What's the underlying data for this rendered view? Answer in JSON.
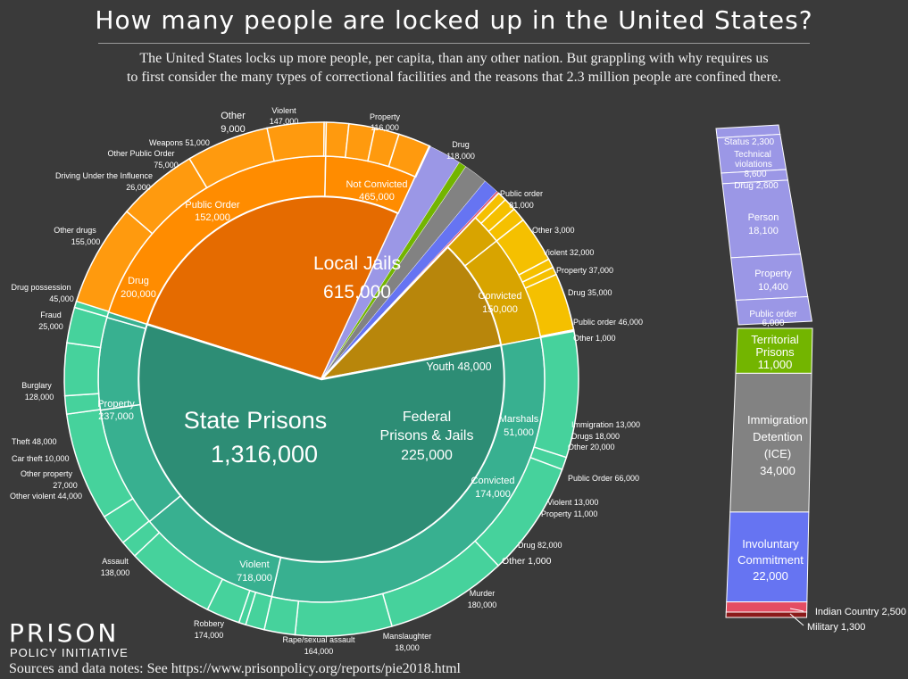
{
  "header": {
    "title": "How many people are locked up in the United States?",
    "subtitle_line1": "The United States locks up more people, per capita, than any other nation.  But grappling with why requires us",
    "subtitle_line2": "to first consider the many types of correctional facilities and the reasons that 2.3 million people are confined there."
  },
  "footer": {
    "logo_line1": "PRISON",
    "logo_line2": "POLICY INITIATIVE",
    "sources": "Sources and data notes: See https://www.prisonpolicy.org/reports/pie2018.html"
  },
  "chart_data": {
    "type": "pie",
    "title": "How many people are locked up in the United States?",
    "colors": {
      "background": "#3a3a3a",
      "state_center": "#2d8d75",
      "state_middle": "#38b090",
      "state_outer": "#46d29c",
      "jail_center": "#e56b00",
      "jail_middle": "#ff8c00",
      "jail_outer": "#ff9a0e",
      "federal_center": "#b8860b",
      "federal_middle": "#d8a400",
      "federal_outer": "#f5c000",
      "youth": "#9b97e6",
      "territorial": "#73b500",
      "immigration": "#828282",
      "involuntary": "#6674f2",
      "indian_country": "#e44d63",
      "military": "#8b1a1a"
    },
    "center": [
      {
        "name": "State Prisons",
        "value": "1,316,000",
        "value_num": 1316000
      },
      {
        "name": "Local Jails",
        "value": "615,000",
        "value_num": 615000
      },
      {
        "name": "Federal Prisons & Jails",
        "value": "225,000",
        "value_num": 225000
      },
      {
        "name": "Youth",
        "value": "48,000",
        "value_num": 48000
      },
      {
        "name": "Territorial Prisons",
        "value": "11,000",
        "value_num": 11000
      },
      {
        "name": "Immigration Detention (ICE)",
        "value": "34,000",
        "value_num": 34000
      },
      {
        "name": "Involuntary Commitment",
        "value": "22,000",
        "value_num": 22000
      },
      {
        "name": "Indian Country",
        "value": "2,500",
        "value_num": 2500
      },
      {
        "name": "Military",
        "value": "1,300",
        "value_num": 1300
      }
    ],
    "state_prisons": {
      "middle": [
        {
          "name": "Violent",
          "value": "718,000",
          "value_num": 718000
        },
        {
          "name": "Property",
          "value": "237,000",
          "value_num": 237000
        },
        {
          "name": "Drug",
          "value": "200,000",
          "value_num": 200000
        },
        {
          "name": "Public Order",
          "value": "152,000",
          "value_num": 152000
        },
        {
          "name": "Other",
          "value": "9,000",
          "value_num": 9000
        }
      ],
      "outer": [
        {
          "name": "Murder",
          "value": "180,000",
          "value_num": 180000
        },
        {
          "name": "Manslaughter",
          "value": "18,000",
          "value_num": 18000
        },
        {
          "name": "Rape/sexual assault",
          "value": "164,000",
          "value_num": 164000
        },
        {
          "name": "Robbery",
          "value": "174,000",
          "value_num": 174000
        },
        {
          "name": "Assault",
          "value": "138,000",
          "value_num": 138000
        },
        {
          "name": "Other violent",
          "value": "44,000",
          "value_num": 44000
        },
        {
          "name": "Other property",
          "value": "27,000",
          "value_num": 27000
        },
        {
          "name": "Car theft",
          "value": "10,000",
          "value_num": 10000
        },
        {
          "name": "Theft",
          "value": "48,000",
          "value_num": 48000
        },
        {
          "name": "Burglary",
          "value": "128,000",
          "value_num": 128000
        },
        {
          "name": "Fraud",
          "value": "25,000",
          "value_num": 25000
        },
        {
          "name": "Drug possession",
          "value": "45,000",
          "value_num": 45000
        },
        {
          "name": "Other drugs",
          "value": "155,000",
          "value_num": 155000
        },
        {
          "name": "Driving Under the Influence",
          "value": "26,000",
          "value_num": 26000
        },
        {
          "name": "Other Public Order",
          "value": "75,000",
          "value_num": 75000
        },
        {
          "name": "Weapons",
          "value": "51,000",
          "value_num": 51000
        },
        {
          "name": "Other",
          "value": "9,000",
          "value_num": 9000
        }
      ]
    },
    "local_jails": {
      "middle": [
        {
          "name": "Not Convicted",
          "value": "465,000",
          "value_num": 465000
        },
        {
          "name": "Convicted",
          "value": "150,000",
          "value_num": 150000
        }
      ],
      "outer": [
        {
          "name": "Violent",
          "value": "147,000",
          "value_num": 147000
        },
        {
          "name": "Property",
          "value": "116,000",
          "value_num": 116000
        },
        {
          "name": "Drug",
          "value": "118,000",
          "value_num": 118000
        },
        {
          "name": "Public order",
          "value": "81,000",
          "value_num": 81000
        },
        {
          "name": "Other",
          "value": "3,000",
          "value_num": 3000
        },
        {
          "name": "Violent",
          "value": "32,000",
          "value_num": 32000
        },
        {
          "name": "Property",
          "value": "37,000",
          "value_num": 37000
        },
        {
          "name": "Drug",
          "value": "35,000",
          "value_num": 35000
        },
        {
          "name": "Public order",
          "value": "46,000",
          "value_num": 46000
        },
        {
          "name": "Other",
          "value": "1,000",
          "value_num": 1000
        }
      ]
    },
    "federal": {
      "middle": [
        {
          "name": "Marshals",
          "value": "51,000",
          "value_num": 51000
        },
        {
          "name": "Convicted",
          "value": "174,000",
          "value_num": 174000
        }
      ],
      "outer": [
        {
          "name": "Immigration",
          "value": "13,000",
          "value_num": 13000
        },
        {
          "name": "Drugs",
          "value": "18,000",
          "value_num": 18000
        },
        {
          "name": "Other",
          "value": "20,000",
          "value_num": 20000
        },
        {
          "name": "Public Order",
          "value": "66,000",
          "value_num": 66000
        },
        {
          "name": "Violent",
          "value": "13,000",
          "value_num": 13000
        },
        {
          "name": "Property",
          "value": "11,000",
          "value_num": 11000
        },
        {
          "name": "Drug",
          "value": "82,000",
          "value_num": 82000
        },
        {
          "name": "Other",
          "value": "1,000",
          "value_num": 1000
        }
      ]
    },
    "youth_bar": [
      {
        "name": "Status",
        "value": "2,300",
        "value_num": 2300
      },
      {
        "name": "Technical violations",
        "value": "8,600",
        "value_num": 8600
      },
      {
        "name": "Drug",
        "value": "2,600",
        "value_num": 2600
      },
      {
        "name": "Person",
        "value": "18,100",
        "value_num": 18100
      },
      {
        "name": "Property",
        "value": "10,400",
        "value_num": 10400
      },
      {
        "name": "Public order",
        "value": "6,000",
        "value_num": 6000
      }
    ],
    "side_bar": [
      {
        "name": "Territorial Prisons",
        "value": "11,000",
        "value_num": 11000
      },
      {
        "name": "Immigration Detention (ICE)",
        "value": "34,000",
        "value_num": 34000
      },
      {
        "name": "Involuntary Commitment",
        "value": "22,000",
        "value_num": 22000
      },
      {
        "name": "Indian Country",
        "value": "2,500",
        "value_num": 2500
      },
      {
        "name": "Military",
        "value": "1,300",
        "value_num": 1300
      }
    ],
    "labels": {
      "center_state_name": "State Prisons",
      "center_state_value": "1,316,000",
      "center_jail_name": "Local Jails",
      "center_jail_value": "615,000",
      "center_fed_name_1": "Federal",
      "center_fed_name_2": "Prisons & Jails",
      "center_fed_value": "225,000",
      "youth": "Youth 48,000",
      "state_violent": "Violent",
      "state_violent_value": "718,000",
      "state_property": "Property",
      "state_property_value": "237,000",
      "state_drug": "Drug",
      "state_drug_value": "200,000",
      "state_public_order": "Public Order",
      "state_public_order_value": "152,000",
      "jail_not_convicted": "Not Convicted",
      "jail_not_convicted_value": "465,000",
      "jail_convicted": "Convicted",
      "jail_convicted_value": "150,000",
      "fed_marshals": "Marshals",
      "fed_marshals_value": "51,000",
      "fed_convicted": "Convicted",
      "fed_convicted_value": "174,000",
      "o_other": "Other",
      "o_other_v": "9,000",
      "o_jv": "Violent",
      "o_jv_v": "147,000",
      "o_jp": "Property",
      "o_jp_v": "116,000",
      "o_jd": "Drug",
      "o_jd_v": "118,000",
      "o_jpo": "Public order",
      "o_jpo_v": "81,000",
      "o_jo": "Other 3,000",
      "o_jcv": "Violent 32,000",
      "o_jcp": "Property 37,000",
      "o_jcd": "Drug 35,000",
      "o_jcpo": "Public order 46,000",
      "o_jco": "Other 1,000",
      "o_fi": "Immigration 13,000",
      "o_fd": "Drugs 18,000",
      "o_fo": "Other 20,000",
      "o_fpo": "Public Order 66,000",
      "o_fv": "Violent 13,000",
      "o_fp": "Property 11,000",
      "o_fdr": "Drug 82,000",
      "o_fot": "Other 1,000",
      "o_weap": "Weapons  51,000",
      "o_opo": "Other Public Order",
      "o_opo_v": "75,000",
      "o_dui": "Driving Under the Influence",
      "o_dui_v": "26,000",
      "o_od": "Other drugs",
      "o_od_v": "155,000",
      "o_dp": "Drug possession",
      "o_dp_v": "45,000",
      "o_fr": "Fraud",
      "o_fr_v": "25,000",
      "o_bu": "Burglary",
      "o_bu_v": "128,000",
      "o_th": "Theft 48,000",
      "o_ct": "Car theft 10,000",
      "o_op": "Other property",
      "o_op_v": "27,000",
      "o_ov": "Other violent 44,000",
      "o_as": "Assault",
      "o_as_v": "138,000",
      "o_ro": "Robbery",
      "o_ro_v": "174,000",
      "o_rs": "Rape/sexual assault",
      "o_rs_v": "164,000",
      "o_ma": "Manslaughter",
      "o_ma_v": "18,000",
      "o_mu": "Murder",
      "o_mu_v": "180,000",
      "yb_status": "Status 2,300",
      "yb_tech_1": "Technical",
      "yb_tech_2": "violations",
      "yb_tech_3": "8,600",
      "yb_drug": "Drug 2,600",
      "yb_person": "Person",
      "yb_person_v": "18,100",
      "yb_property": "Property",
      "yb_property_v": "10,400",
      "yb_po": "Public order",
      "yb_po_v": "6,000",
      "sb_terr_1": "Territorial",
      "sb_terr_2": "Prisons",
      "sb_terr_3": "11,000",
      "sb_imm_1": "Immigration",
      "sb_imm_2": "Detention",
      "sb_imm_3": "(ICE)",
      "sb_imm_4": "34,000",
      "sb_inv_1": "Involuntary",
      "sb_inv_2": "Commitment",
      "sb_inv_3": "22,000",
      "sb_indian": "Indian Country 2,500",
      "sb_military": "Military 1,300"
    }
  }
}
